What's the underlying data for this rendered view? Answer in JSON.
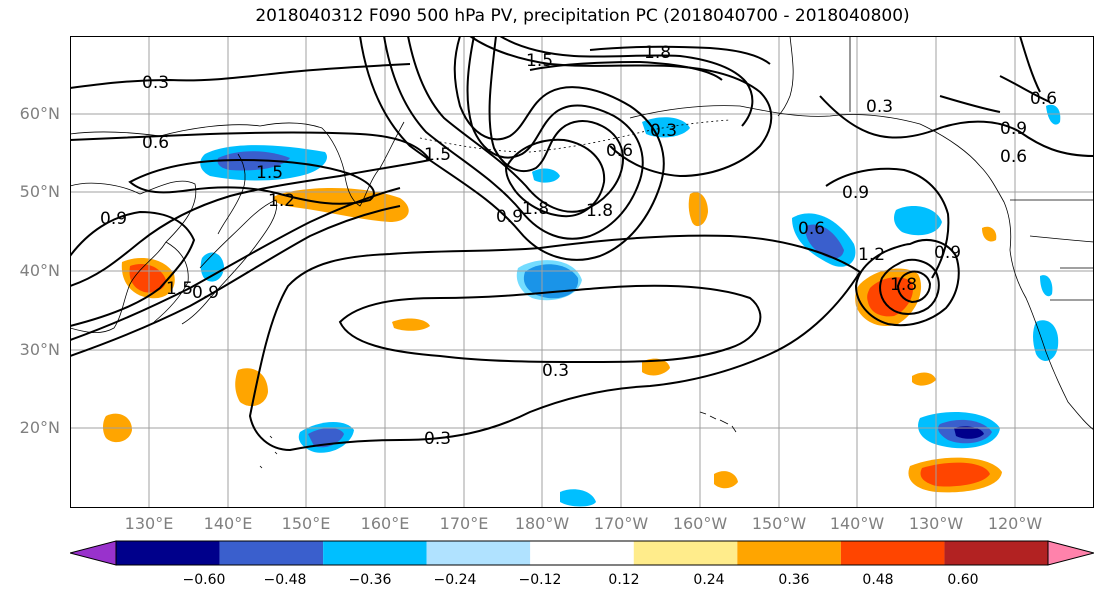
{
  "title": "2018040312 F090 500 hPa PV, precipitation PC (2018040700 - 2018040800)",
  "lat_labels": [
    "60°N",
    "50°N",
    "40°N",
    "30°N",
    "20°N"
  ],
  "lon_labels": [
    "130°E",
    "140°E",
    "150°E",
    "160°E",
    "170°E",
    "180°W",
    "170°W",
    "160°W",
    "150°W",
    "140°W",
    "130°W",
    "120°W"
  ],
  "contour_labels": [
    "0.3",
    "0.6",
    "0.9",
    "1.2",
    "1.5",
    "1.8",
    "0.3",
    "0.3",
    "0.6",
    "0.9",
    "0.9",
    "1.2",
    "1.5",
    "1.8",
    "1.5",
    "0.9",
    "0.6",
    "0.3",
    "0.3",
    "0.6",
    "0.9",
    "1.5",
    "1.8",
    "0.9",
    "0.6",
    "1.8"
  ],
  "colorbar": {
    "ticks": [
      "−0.60",
      "−0.48",
      "−0.36",
      "−0.24",
      "−0.12",
      "0.12",
      "0.24",
      "0.36",
      "0.48",
      "0.60"
    ],
    "colors": [
      "#9932cc",
      "#00008b",
      "#3a5fcd",
      "#00bfff",
      "#b0e2ff",
      "#ffffff",
      "#ffec8b",
      "#ffa500",
      "#ff4500",
      "#b22222",
      "#ff82ab"
    ]
  },
  "colors": {
    "land_outline": "#000000",
    "contour": "#000000",
    "grid": "#a0a0a0"
  }
}
